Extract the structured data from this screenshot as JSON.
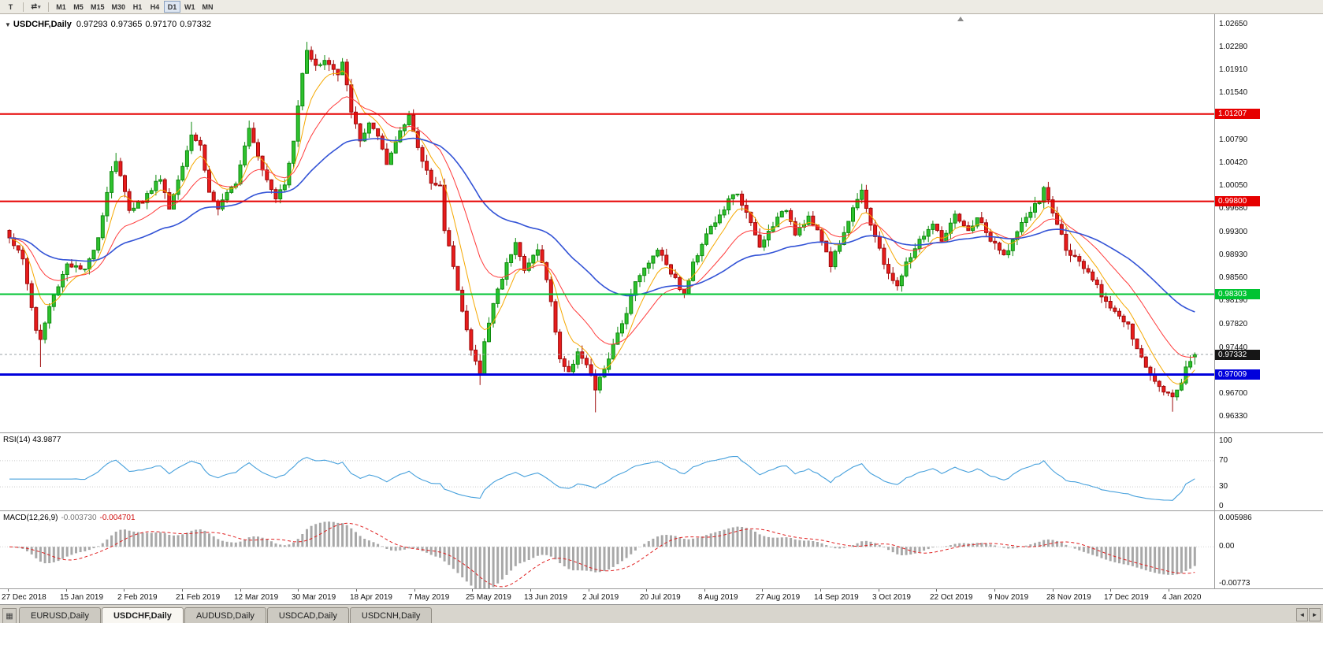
{
  "toolbar": {
    "cursor_tool_label": "T",
    "shift_tool_label": "⇄",
    "dropdown_glyph": "▾",
    "timeframes": [
      "M1",
      "M5",
      "M15",
      "M30",
      "H1",
      "H4",
      "D1",
      "W1",
      "MN"
    ],
    "active_timeframe": "D1"
  },
  "chart": {
    "collapse_glyph": "▼",
    "symbol": "USDCHF,Daily",
    "open": "0.97293",
    "high": "0.97365",
    "low": "0.97170",
    "close": "0.97332",
    "price_axis_labels": [
      "1.02650",
      "1.02280",
      "1.01910",
      "1.01540",
      "1.00790",
      "1.00420",
      "1.00050",
      "0.99680",
      "0.99300",
      "0.98930",
      "0.98560",
      "0.98190",
      "0.97820",
      "0.97440",
      "0.96700",
      "0.96330"
    ],
    "hlines": [
      {
        "label": "1.01207",
        "value": 1.01207,
        "color": "#e60000",
        "width": 2
      },
      {
        "label": "0.99800",
        "value": 0.998,
        "color": "#e60000",
        "width": 2
      },
      {
        "label": "0.98303",
        "value": 0.98303,
        "color": "#00c332",
        "width": 2
      },
      {
        "label": "0.97009",
        "value": 0.97009,
        "color": "#0000dc",
        "width": 3
      }
    ],
    "current_price": {
      "label": "0.97332",
      "value": 0.97332,
      "tag_color": "#161616"
    }
  },
  "rsi": {
    "label": "RSI(14)",
    "value": "43.9877",
    "axis_labels": [
      "100",
      "70",
      "30",
      "0"
    ],
    "axis_values": [
      100,
      70,
      30,
      0
    ],
    "level_lines": [
      70,
      30
    ],
    "line_color": "#46a0dc"
  },
  "macd": {
    "label": "MACD(12,26,9)",
    "main_value": "-0.003730",
    "signal_value": "-0.004701",
    "axis_labels": [
      "0.005986",
      "0.00",
      "-0.00773"
    ],
    "axis_values": [
      0.005986,
      0,
      -0.00773
    ],
    "histogram_color": "#a8a8a8",
    "signal_color": "#e02020"
  },
  "time_axis": {
    "labels": [
      "27 Dec 2018",
      "15 Jan 2019",
      "2 Feb 2019",
      "21 Feb 2019",
      "12 Mar 2019",
      "30 Mar 2019",
      "18 Apr 2019",
      "7 May 2019",
      "25 May 2019",
      "13 Jun 2019",
      "2 Jul 2019",
      "20 Jul 2019",
      "8 Aug 2019",
      "27 Aug 2019",
      "14 Sep 2019",
      "3 Oct 2019",
      "22 Oct 2019",
      "9 Nov 2019",
      "28 Nov 2019",
      "17 Dec 2019",
      "4 Jan 2020"
    ]
  },
  "tabs": {
    "list_icon": "▦",
    "scroll_left": "◄",
    "scroll_right": "►",
    "items": [
      {
        "label": "EURUSD,Daily",
        "active": false
      },
      {
        "label": "USDCHF,Daily",
        "active": true
      },
      {
        "label": "AUDUSD,Daily",
        "active": false
      },
      {
        "label": "USDCAD,Daily",
        "active": false
      },
      {
        "label": "USDCNH,Daily",
        "active": false
      }
    ]
  },
  "chart_data": {
    "type": "candlestick",
    "symbol": "USDCHF",
    "timeframe": "Daily",
    "ohlc_last": {
      "open": 0.97293,
      "high": 0.97365,
      "low": 0.9717,
      "close": 0.97332
    },
    "ylim": [
      0.9633,
      1.0265
    ],
    "n_candles": 268,
    "x_tick_labels": [
      "27 Dec 2018",
      "15 Jan 2019",
      "2 Feb 2019",
      "21 Feb 2019",
      "12 Mar 2019",
      "30 Mar 2019",
      "18 Apr 2019",
      "7 May 2019",
      "25 May 2019",
      "13 Jun 2019",
      "2 Jul 2019",
      "20 Jul 2019",
      "8 Aug 2019",
      "27 Aug 2019",
      "14 Sep 2019",
      "3 Oct 2019",
      "22 Oct 2019",
      "9 Nov 2019",
      "28 Nov 2019",
      "17 Dec 2019",
      "4 Jan 2020"
    ],
    "price_anchors": [
      [
        0,
        0.9924
      ],
      [
        3,
        0.9886
      ],
      [
        6,
        0.9772
      ],
      [
        7,
        0.9757
      ],
      [
        9,
        0.981
      ],
      [
        13,
        0.988
      ],
      [
        17,
        0.9867
      ],
      [
        20,
        0.9924
      ],
      [
        23,
        1.003
      ],
      [
        24,
        1.0045
      ],
      [
        27,
        0.9968
      ],
      [
        30,
        0.9981
      ],
      [
        34,
        1.0019
      ],
      [
        36,
        0.9968
      ],
      [
        41,
        1.0089
      ],
      [
        43,
        1.007
      ],
      [
        45,
        0.9994
      ],
      [
        47,
        0.9968
      ],
      [
        51,
        1.0012
      ],
      [
        54,
        1.0101
      ],
      [
        57,
        1.0032
      ],
      [
        60,
        0.9987
      ],
      [
        62,
        1.0006
      ],
      [
        64,
        1.0076
      ],
      [
        66,
        1.019
      ],
      [
        67,
        1.0226
      ],
      [
        69,
        1.0196
      ],
      [
        71,
        1.0209
      ],
      [
        74,
        1.0183
      ],
      [
        75,
        1.0202
      ],
      [
        77,
        1.0127
      ],
      [
        79,
        1.0076
      ],
      [
        81,
        1.0107
      ],
      [
        83,
        1.0082
      ],
      [
        85,
        1.0038
      ],
      [
        88,
        1.0095
      ],
      [
        90,
        1.012
      ],
      [
        92,
        1.0063
      ],
      [
        95,
        1.0012
      ],
      [
        97,
        1.0006
      ],
      [
        98,
        0.993
      ],
      [
        100,
        0.9879
      ],
      [
        102,
        0.9803
      ],
      [
        104,
        0.974
      ],
      [
        106,
        0.9702
      ],
      [
        107,
        0.9752
      ],
      [
        109,
        0.9816
      ],
      [
        112,
        0.9879
      ],
      [
        114,
        0.9917
      ],
      [
        116,
        0.9867
      ],
      [
        119,
        0.9905
      ],
      [
        121,
        0.9854
      ],
      [
        122,
        0.9816
      ],
      [
        124,
        0.9727
      ],
      [
        126,
        0.9702
      ],
      [
        128,
        0.974
      ],
      [
        130,
        0.9715
      ],
      [
        132,
        0.9677
      ],
      [
        135,
        0.9727
      ],
      [
        137,
        0.9765
      ],
      [
        139,
        0.9803
      ],
      [
        141,
        0.9854
      ],
      [
        144,
        0.9879
      ],
      [
        146,
        0.9905
      ],
      [
        149,
        0.9867
      ],
      [
        152,
        0.9829
      ],
      [
        154,
        0.9879
      ],
      [
        157,
        0.993
      ],
      [
        160,
        0.9955
      ],
      [
        162,
        0.9981
      ],
      [
        164,
        0.9994
      ],
      [
        167,
        0.9943
      ],
      [
        169,
        0.9905
      ],
      [
        172,
        0.9943
      ],
      [
        175,
        0.9968
      ],
      [
        177,
        0.993
      ],
      [
        180,
        0.9955
      ],
      [
        183,
        0.9917
      ],
      [
        185,
        0.9879
      ],
      [
        188,
        0.993
      ],
      [
        191,
        0.9987
      ],
      [
        192,
        1.0
      ],
      [
        194,
        0.9943
      ],
      [
        197,
        0.9879
      ],
      [
        200,
        0.9841
      ],
      [
        202,
        0.9879
      ],
      [
        205,
        0.9917
      ],
      [
        208,
        0.9943
      ],
      [
        210,
        0.9917
      ],
      [
        213,
        0.9955
      ],
      [
        216,
        0.993
      ],
      [
        218,
        0.9955
      ],
      [
        221,
        0.9917
      ],
      [
        224,
        0.9892
      ],
      [
        226,
        0.9917
      ],
      [
        229,
        0.9955
      ],
      [
        232,
        0.9981
      ],
      [
        233,
        1.0
      ],
      [
        236,
        0.9943
      ],
      [
        238,
        0.9905
      ],
      [
        241,
        0.9879
      ],
      [
        244,
        0.9854
      ],
      [
        246,
        0.9829
      ],
      [
        249,
        0.9803
      ],
      [
        252,
        0.9778
      ],
      [
        254,
        0.974
      ],
      [
        257,
        0.9702
      ],
      [
        260,
        0.9677
      ],
      [
        262,
        0.9664
      ],
      [
        264,
        0.9689
      ],
      [
        265,
        0.9715
      ],
      [
        267,
        0.97332
      ]
    ],
    "wick_overrides": {
      "7": {
        "low": 0.9713
      },
      "24": {
        "high": 1.0058
      },
      "41": {
        "high": 1.0108
      },
      "54": {
        "high": 1.011
      },
      "67": {
        "high": 1.0237
      },
      "106": {
        "low": 0.9684
      },
      "132": {
        "low": 0.964
      },
      "192": {
        "high": 1.0008
      },
      "233": {
        "high": 1.0005
      },
      "262": {
        "low": 0.9641
      }
    },
    "style": {
      "up_fill": "#2ec22e",
      "up_stroke": "#0e8a0e",
      "down_fill": "#e81c1c",
      "down_stroke": "#9e0b0b",
      "current_line_color": "#9aa0a6"
    },
    "moving_averages": [
      {
        "period": 7,
        "color": "#f5a800",
        "width": 1
      },
      {
        "period": 18,
        "color": "#ff3b3b",
        "width": 1
      },
      {
        "period": 48,
        "color": "#3353d6",
        "width": 1.6
      }
    ],
    "horizontal_lines": [
      1.01207,
      0.998,
      0.98303,
      0.97009
    ],
    "indicators": {
      "rsi": {
        "period": 14,
        "last_value": 43.9877,
        "range": [
          0,
          100
        ],
        "levels": [
          30,
          70
        ]
      },
      "macd": {
        "fast": 12,
        "slow": 26,
        "signal": 9,
        "last_main": -0.00373,
        "last_signal": -0.004701,
        "range": [
          -0.00773,
          0.005986
        ]
      }
    }
  }
}
